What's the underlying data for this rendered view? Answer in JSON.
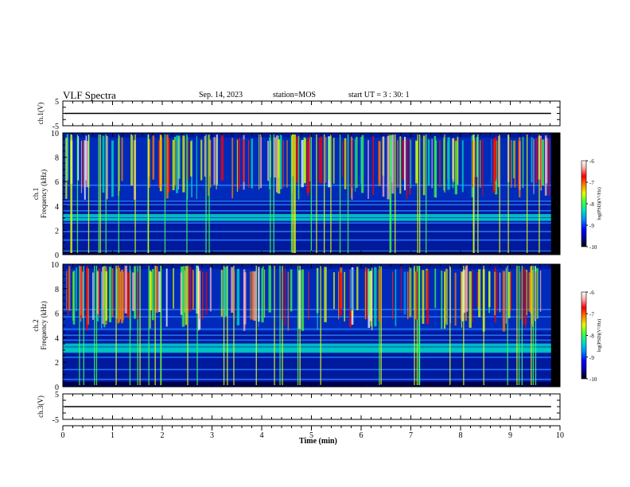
{
  "header": {
    "title": "VLF Spectra",
    "date": "Sep. 14, 2023",
    "station": "station=MOS",
    "start": "start UT =  3 : 30: 1"
  },
  "chart_data": {
    "type": "heatmap",
    "x_label": "Time (min)",
    "x_range": [
      0,
      10
    ],
    "x_ticks": [
      "0",
      "1",
      "2",
      "3",
      "4",
      "5",
      "6",
      "7",
      "8",
      "9",
      "10"
    ],
    "data_end_min": 9.82,
    "channels": [
      {
        "name": "ch.1",
        "waveform": {
          "label": "ch.1(V)",
          "y_range": [
            -5,
            5
          ],
          "ticks": [
            "5",
            "-5"
          ],
          "level": 0
        },
        "spectrogram": {
          "ylabel": "Frequency (kHz)",
          "y_range": [
            0,
            10
          ],
          "y_ticks": [
            "0",
            "2",
            "4",
            "6",
            "8",
            "10"
          ],
          "colorbar": {
            "label": "log(PSD)(V²/Hz)",
            "range": [
              -10,
              -6
            ],
            "ticks": [
              "-6",
              "-7",
              "-8",
              "-9",
              "-10"
            ]
          },
          "persistent_bands_khz": [
            0.3,
            1.2,
            1.9,
            2.6,
            2.9,
            3.2,
            3.6,
            4.1,
            4.4,
            5.7
          ]
        }
      },
      {
        "name": "ch.2",
        "spectrogram": {
          "ylabel": "Frequency (kHz)",
          "y_range": [
            0,
            10
          ],
          "y_ticks": [
            "0",
            "2",
            "4",
            "6",
            "8",
            "10"
          ],
          "colorbar": {
            "label": "log(PSD)(V²/Hz)",
            "range": [
              -10,
              -6
            ],
            "ticks": [
              "-6",
              "-7",
              "-8",
              "-9",
              "-10"
            ]
          },
          "persistent_bands_khz": [
            0.6,
            1.4,
            2.4,
            2.9,
            3.1,
            3.4,
            3.8,
            4.2,
            4.7,
            5.7,
            6.3
          ]
        }
      },
      {
        "name": "ch.3",
        "waveform": {
          "label": "ch.3(V)",
          "y_range": [
            -5,
            5
          ],
          "ticks": [
            "5",
            "-5"
          ],
          "level": 0
        }
      }
    ],
    "colors": {
      "background": "#000000",
      "noise": "#001a9e",
      "colormap": [
        "#000000",
        "#00008a",
        "#0000ff",
        "#0090ff",
        "#00e0c0",
        "#40ff40",
        "#e0ff00",
        "#ff8000",
        "#ff0000",
        "#ffb0b0",
        "#ffffff"
      ]
    }
  }
}
